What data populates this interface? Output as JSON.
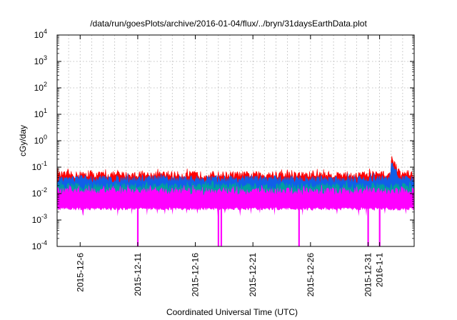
{
  "chart_data": {
    "type": "area",
    "title": "/data/run/goesPlots/archive/2016-01-04/flux/../bryn/31daysEarthData.plot",
    "xlabel": "Coordinated Universal Time (UTC)",
    "ylabel": "cGy/day",
    "yscale": "log",
    "xlim": [
      "2015-12-04T00:00",
      "2016-01-04T00:00"
    ],
    "ylim": [
      0.0001,
      10000
    ],
    "grid": true,
    "x_ticks": [
      {
        "label": "2015-12-6",
        "date": "2015-12-06"
      },
      {
        "label": "2015-12-11",
        "date": "2015-12-11"
      },
      {
        "label": "2015-12-16",
        "date": "2015-12-16"
      },
      {
        "label": "2015-12-21",
        "date": "2015-12-21"
      },
      {
        "label": "2015-12-26",
        "date": "2015-12-26"
      },
      {
        "label": "2015-12-31",
        "date": "2015-12-31"
      },
      {
        "label": "2016-1-1",
        "date": "2016-01-01"
      }
    ],
    "y_ticks": [
      {
        "base": "10",
        "exp": "-4",
        "value": 0.0001
      },
      {
        "base": "10",
        "exp": "-3",
        "value": 0.001
      },
      {
        "base": "10",
        "exp": "-2",
        "value": 0.01
      },
      {
        "base": "10",
        "exp": "-1",
        "value": 0.1
      },
      {
        "base": "10",
        "exp": "0",
        "value": 1
      },
      {
        "base": "10",
        "exp": "1",
        "value": 10
      },
      {
        "base": "10",
        "exp": "2",
        "value": 100
      },
      {
        "base": "10",
        "exp": "3",
        "value": 1000
      },
      {
        "base": "10",
        "exp": "4",
        "value": 10000
      }
    ],
    "series": [
      {
        "color": "#ff0000",
        "typical": 0.05,
        "events": [
          {
            "start": "2016-01-02T00:00",
            "end": "2016-01-02T20:00",
            "peak": 0.22
          }
        ]
      },
      {
        "color": "#1060e8",
        "typical": 0.035,
        "events": [
          {
            "start": "2016-01-02T00:00",
            "end": "2016-01-02T20:00",
            "peak": 0.13
          }
        ]
      },
      {
        "color": "#00a0a0",
        "typical": 0.018,
        "events": []
      },
      {
        "color": "#ff00ff",
        "typical": 0.012,
        "floor": 0.003,
        "dropouts": [
          "2015-12-11T00:00",
          "2015-12-18T00:00",
          "2015-12-18T06:00",
          "2015-12-25T00:00",
          "2015-12-31T00:00",
          "2016-01-01T00:00"
        ]
      }
    ]
  }
}
